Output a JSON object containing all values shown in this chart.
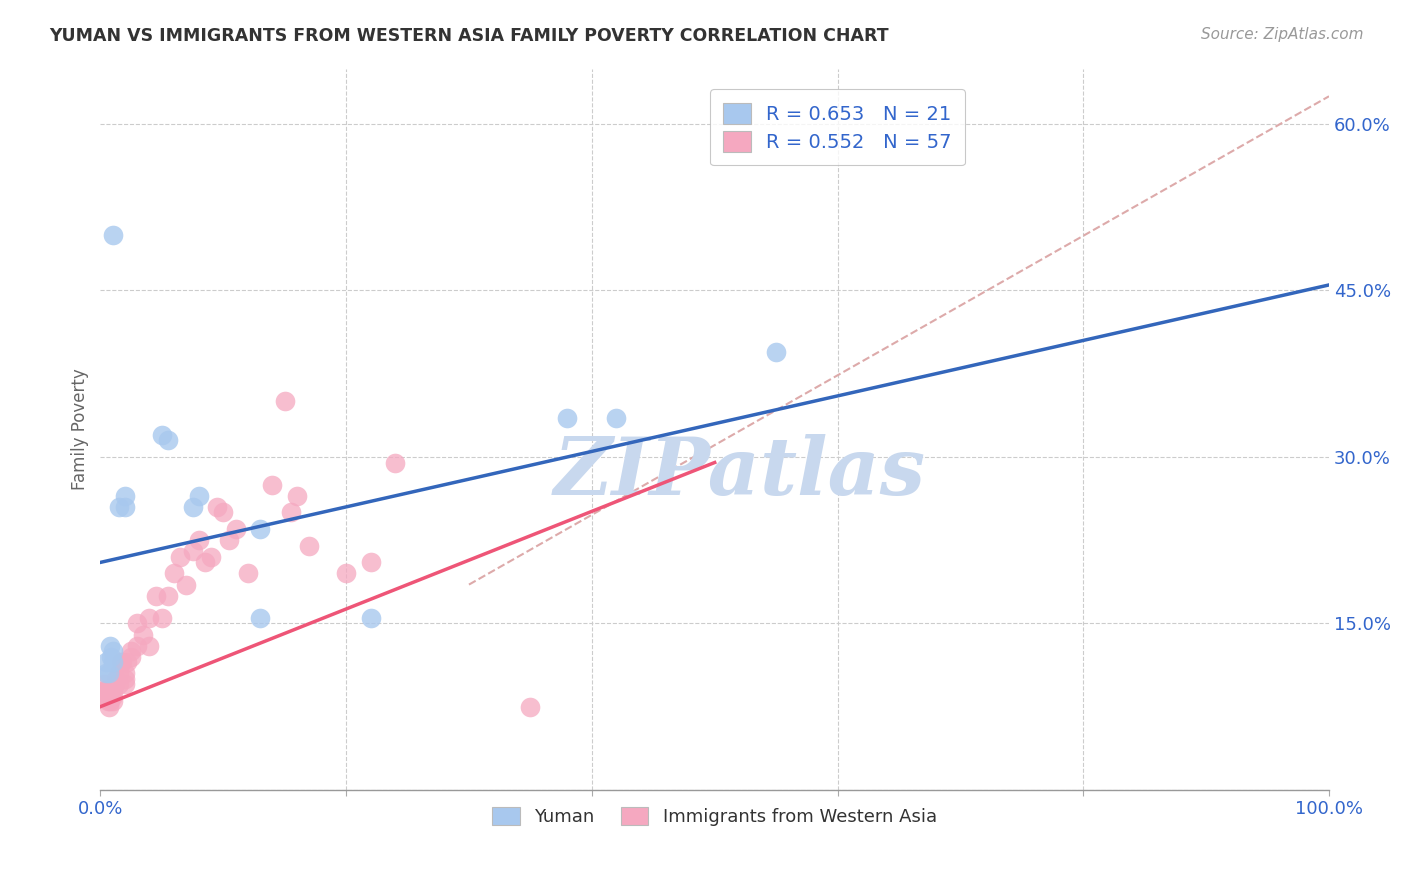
{
  "title": "YUMAN VS IMMIGRANTS FROM WESTERN ASIA FAMILY POVERTY CORRELATION CHART",
  "source": "Source: ZipAtlas.com",
  "ylabel": "Family Poverty",
  "xlim": [
    0.0,
    1.0
  ],
  "ylim": [
    0.0,
    0.65
  ],
  "x_ticks": [
    0.0,
    0.2,
    0.4,
    0.6,
    0.8,
    1.0
  ],
  "x_tick_labels": [
    "0.0%",
    "",
    "",
    "",
    "",
    "100.0%"
  ],
  "y_ticks_right": [
    0.0,
    0.15,
    0.3,
    0.45,
    0.6
  ],
  "y_tick_labels_right": [
    "",
    "15.0%",
    "30.0%",
    "45.0%",
    "60.0%"
  ],
  "legend1_label": "R = 0.653   N = 21",
  "legend2_label": "R = 0.552   N = 57",
  "legend_bottom_label1": "Yuman",
  "legend_bottom_label2": "Immigrants from Western Asia",
  "blue_color": "#A8C8EE",
  "pink_color": "#F5A8C0",
  "blue_line_color": "#3366BB",
  "pink_line_color": "#EE5577",
  "diag_line_color": "#DDAAAA",
  "text_color_blue": "#3366CC",
  "watermark_color": "#C8D8EE",
  "blue_line_x0": 0.0,
  "blue_line_y0": 0.205,
  "blue_line_x1": 1.0,
  "blue_line_y1": 0.455,
  "pink_line_x0": 0.0,
  "pink_line_y0": 0.075,
  "pink_line_x1": 0.5,
  "pink_line_y1": 0.295,
  "diag_line_x0": 0.3,
  "diag_line_y0": 0.185,
  "diag_line_x1": 1.0,
  "diag_line_y1": 0.625,
  "yuman_x": [
    0.005,
    0.005,
    0.007,
    0.008,
    0.009,
    0.01,
    0.01,
    0.01,
    0.015,
    0.02,
    0.02,
    0.05,
    0.055,
    0.075,
    0.08,
    0.13,
    0.13,
    0.22,
    0.38,
    0.42,
    0.55
  ],
  "yuman_y": [
    0.105,
    0.115,
    0.105,
    0.13,
    0.12,
    0.115,
    0.125,
    0.5,
    0.255,
    0.255,
    0.265,
    0.32,
    0.315,
    0.255,
    0.265,
    0.155,
    0.235,
    0.155,
    0.335,
    0.335,
    0.395
  ],
  "immig_x": [
    0.003,
    0.004,
    0.004,
    0.005,
    0.005,
    0.006,
    0.006,
    0.007,
    0.007,
    0.008,
    0.008,
    0.009,
    0.009,
    0.01,
    0.01,
    0.01,
    0.012,
    0.013,
    0.015,
    0.015,
    0.017,
    0.018,
    0.02,
    0.02,
    0.02,
    0.022,
    0.025,
    0.025,
    0.03,
    0.03,
    0.035,
    0.04,
    0.04,
    0.045,
    0.05,
    0.055,
    0.06,
    0.065,
    0.07,
    0.075,
    0.08,
    0.085,
    0.09,
    0.095,
    0.1,
    0.105,
    0.11,
    0.12,
    0.14,
    0.15,
    0.155,
    0.16,
    0.17,
    0.2,
    0.22,
    0.24,
    0.35
  ],
  "immig_y": [
    0.095,
    0.085,
    0.09,
    0.085,
    0.09,
    0.08,
    0.09,
    0.075,
    0.09,
    0.08,
    0.09,
    0.085,
    0.09,
    0.08,
    0.085,
    0.09,
    0.095,
    0.1,
    0.095,
    0.105,
    0.115,
    0.115,
    0.095,
    0.1,
    0.105,
    0.115,
    0.12,
    0.125,
    0.13,
    0.15,
    0.14,
    0.13,
    0.155,
    0.175,
    0.155,
    0.175,
    0.195,
    0.21,
    0.185,
    0.215,
    0.225,
    0.205,
    0.21,
    0.255,
    0.25,
    0.225,
    0.235,
    0.195,
    0.275,
    0.35,
    0.25,
    0.265,
    0.22,
    0.195,
    0.205,
    0.295,
    0.075
  ]
}
